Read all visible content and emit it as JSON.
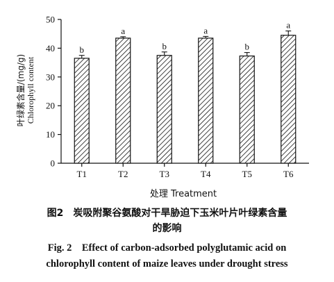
{
  "chart_data": {
    "type": "bar",
    "categories": [
      "T1",
      "T2",
      "T3",
      "T4",
      "T5",
      "T6"
    ],
    "values": [
      36.5,
      43.5,
      37.5,
      43.5,
      37.3,
      44.5
    ],
    "errors": [
      1.0,
      0.5,
      1.2,
      0.6,
      1.2,
      1.5
    ],
    "significance_labels": [
      "b",
      "a",
      "b",
      "a",
      "b",
      "a"
    ],
    "ylim": [
      0,
      50
    ],
    "yticks": [
      0,
      10,
      20,
      30,
      40,
      50
    ],
    "xlabel": "处理 Treatment",
    "ylabel_cn": "叶绿素含量/(mg/g)",
    "ylabel_en": "Chlorophyll content",
    "bar_pattern": "diagonal-hatch",
    "grid": false
  },
  "caption": {
    "cn_line1": "图2　炭吸附聚谷氨酸对干旱胁迫下玉米叶片叶绿素含量",
    "cn_line2": "的影响",
    "en_line1": "Fig. 2　Effect of carbon-adsorbed polyglutamic acid on",
    "en_line2": "chlorophyll content of maize leaves under drought stress"
  }
}
